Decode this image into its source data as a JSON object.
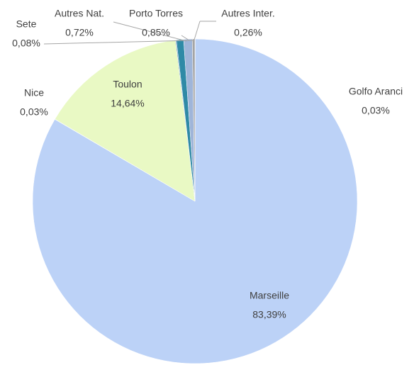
{
  "chart_data": {
    "type": "pie",
    "categories": [
      "Golfo Aranci",
      "Marseille",
      "Nice",
      "Toulon",
      "Sete",
      "Autres Nat.",
      "Porto Torres",
      "Autres Inter."
    ],
    "values": [
      0.03,
      83.39,
      0.03,
      14.64,
      0.08,
      0.72,
      0.85,
      0.26
    ],
    "value_labels": [
      "0,03%",
      "83,39%",
      "0,03%",
      "14,64%",
      "0,08%",
      "0,72%",
      "0,85%",
      "0,26%"
    ],
    "colors": [
      "#c8c8c8",
      "#bcd2f7",
      "#5b9bd5",
      "#e9f9c4",
      "#4a7fb0",
      "#2f8aa6",
      "#9fb5d9",
      "#a5a5a5"
    ]
  }
}
